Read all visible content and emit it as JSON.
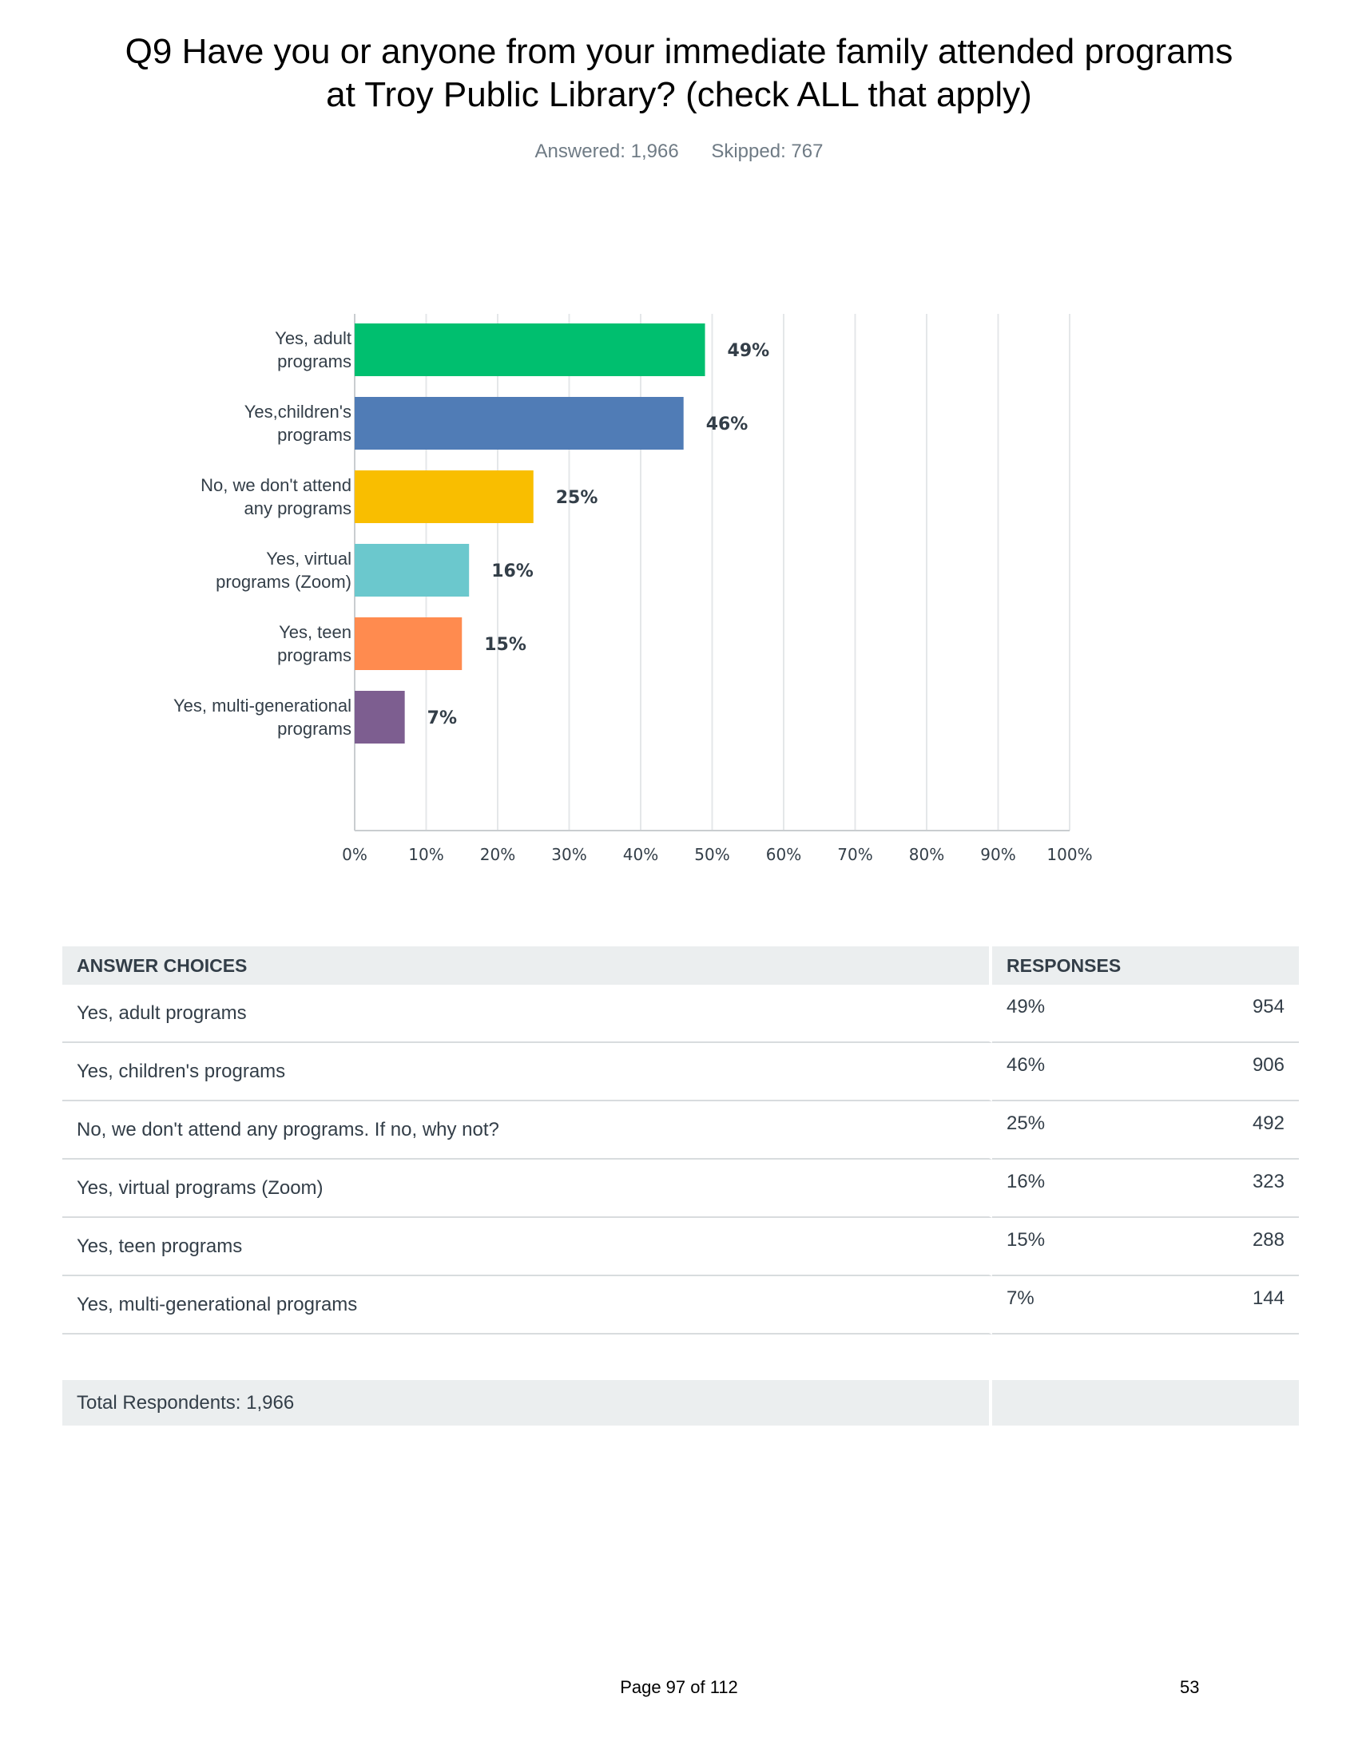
{
  "title_line1": "Q9 Have you or anyone from your immediate family attended programs",
  "title_line2": "at Troy Public Library? (check ALL that apply)",
  "answered": "Answered: 1,966",
  "skipped": "Skipped: 767",
  "chart_data": {
    "type": "bar",
    "orientation": "horizontal",
    "categories": [
      [
        "Yes, adult",
        "programs"
      ],
      [
        "Yes,children's",
        "programs"
      ],
      [
        "No, we don't  attend",
        "any programs"
      ],
      [
        "Yes, virtual",
        "programs (Zoom)"
      ],
      [
        "Yes, teen",
        "programs"
      ],
      [
        "Yes, multi-generational",
        "programs"
      ]
    ],
    "values": [
      49,
      46,
      25,
      16,
      15,
      7
    ],
    "value_labels": [
      "49%",
      "46%",
      "25%",
      "16%",
      "15%",
      "7%"
    ],
    "colors": [
      "#00bf6f",
      "#507cb6",
      "#f9be00",
      "#6bc8cd",
      "#ff8b4f",
      "#7d5e90"
    ],
    "xlim": [
      0,
      100
    ],
    "xticks": [
      "0%",
      "10%",
      "20%",
      "30%",
      "40%",
      "50%",
      "60%",
      "70%",
      "80%",
      "90%",
      "100%"
    ],
    "grid": true,
    "title": "",
    "xlabel": "",
    "ylabel": ""
  },
  "table": {
    "header_choices": "ANSWER CHOICES",
    "header_responses": "RESPONSES",
    "rows": [
      {
        "choice": "Yes, adult programs",
        "pct": "49%",
        "count": "954"
      },
      {
        "choice": "Yes, children's programs",
        "pct": "46%",
        "count": "906"
      },
      {
        "choice": "No, we don't attend any programs. If no, why not?",
        "pct": "25%",
        "count": "492"
      },
      {
        "choice": "Yes, virtual programs (Zoom)",
        "pct": "16%",
        "count": "323"
      },
      {
        "choice": "Yes, teen programs",
        "pct": "15%",
        "count": "288"
      },
      {
        "choice": "Yes, multi-generational programs",
        "pct": "7%",
        "count": "144"
      }
    ],
    "total": "Total Respondents: 1,966"
  },
  "footer": {
    "page": "Page 97 of 112",
    "number": "53"
  }
}
